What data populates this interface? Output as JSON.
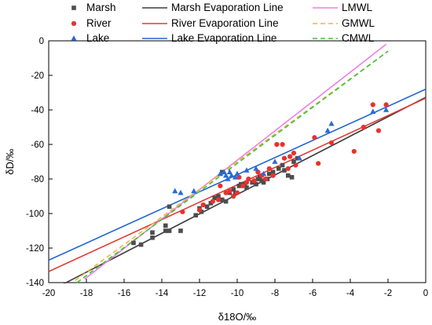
{
  "chart_data": {
    "type": "scatter",
    "xlabel": "δ18O/‰",
    "ylabel": "δD/‰",
    "xlim": [
      -20,
      0
    ],
    "ylim": [
      -140,
      0
    ],
    "xticks": [
      -20,
      -18,
      -16,
      -14,
      -12,
      -10,
      -8,
      -6,
      -4,
      -2,
      0
    ],
    "yticks": [
      -140,
      -120,
      -100,
      -80,
      -60,
      -40,
      -20,
      0
    ],
    "grid": false,
    "legend_position": "top",
    "series": [
      {
        "name": "Marsh",
        "marker": "square",
        "color": "#4d4d4d",
        "points": [
          [
            -15.5,
            -117
          ],
          [
            -15.1,
            -118
          ],
          [
            -14.5,
            -114
          ],
          [
            -14.5,
            -111
          ],
          [
            -13.8,
            -110
          ],
          [
            -13.6,
            -110
          ],
          [
            -13.0,
            -110
          ],
          [
            -13.6,
            -96
          ],
          [
            -13.8,
            -107
          ],
          [
            -12.2,
            -101
          ],
          [
            -12.0,
            -97
          ],
          [
            -11.9,
            -99
          ],
          [
            -11.6,
            -96
          ],
          [
            -11.4,
            -94
          ],
          [
            -11.2,
            -91
          ],
          [
            -11.0,
            -90
          ],
          [
            -10.8,
            -92
          ],
          [
            -10.6,
            -93
          ],
          [
            -10.4,
            -88
          ],
          [
            -10.2,
            -86
          ],
          [
            -10.1,
            -88
          ],
          [
            -9.9,
            -84
          ],
          [
            -9.8,
            -83
          ],
          [
            -9.6,
            -83
          ],
          [
            -9.5,
            -85
          ],
          [
            -9.2,
            -82
          ],
          [
            -9.0,
            -83
          ],
          [
            -8.9,
            -80
          ],
          [
            -8.8,
            -79
          ],
          [
            -8.7,
            -81
          ],
          [
            -8.6,
            -82
          ],
          [
            -8.4,
            -80
          ],
          [
            -8.3,
            -77
          ],
          [
            -8.1,
            -76
          ],
          [
            -7.8,
            -74
          ],
          [
            -7.6,
            -72
          ],
          [
            -7.5,
            -75
          ],
          [
            -7.3,
            -78
          ],
          [
            -7.1,
            -79
          ],
          [
            -7.0,
            -70
          ],
          [
            -6.8,
            -68
          ],
          [
            -10.8,
            -76
          ]
        ]
      },
      {
        "name": "River",
        "marker": "circle",
        "color": "#e8322d",
        "points": [
          [
            -12.9,
            -99
          ],
          [
            -12.0,
            -98
          ],
          [
            -11.8,
            -95
          ],
          [
            -11.3,
            -93
          ],
          [
            -11.0,
            -92
          ],
          [
            -10.9,
            -84
          ],
          [
            -10.6,
            -88
          ],
          [
            -10.4,
            -87
          ],
          [
            -10.2,
            -90
          ],
          [
            -10.0,
            -88
          ],
          [
            -9.9,
            -79
          ],
          [
            -9.7,
            -84
          ],
          [
            -9.5,
            -82
          ],
          [
            -9.4,
            -80
          ],
          [
            -9.1,
            -81
          ],
          [
            -8.9,
            -76
          ],
          [
            -8.7,
            -78
          ],
          [
            -8.5,
            -80
          ],
          [
            -8.3,
            -74
          ],
          [
            -8.1,
            -78
          ],
          [
            -7.9,
            -60
          ],
          [
            -7.6,
            -60
          ],
          [
            -7.5,
            -68
          ],
          [
            -7.3,
            -74
          ],
          [
            -7.2,
            -67
          ],
          [
            -7.0,
            -65
          ],
          [
            -6.9,
            -72
          ],
          [
            -5.7,
            -71
          ],
          [
            -5.9,
            -56
          ],
          [
            -5.0,
            -59
          ],
          [
            -3.8,
            -64
          ],
          [
            -3.3,
            -50
          ],
          [
            -2.8,
            -37
          ],
          [
            -2.5,
            -52
          ],
          [
            -2.1,
            -37
          ]
        ]
      },
      {
        "name": "Lake",
        "marker": "triangle",
        "color": "#2b6ad8",
        "points": [
          [
            -13.3,
            -87
          ],
          [
            -13.0,
            -88
          ],
          [
            -12.3,
            -87
          ],
          [
            -10.9,
            -77
          ],
          [
            -10.7,
            -76
          ],
          [
            -10.6,
            -78
          ],
          [
            -10.5,
            -80
          ],
          [
            -10.4,
            -76
          ],
          [
            -10.3,
            -78
          ],
          [
            -10.1,
            -79
          ],
          [
            -10.0,
            -77
          ],
          [
            -9.5,
            -75
          ],
          [
            -9.0,
            -74
          ],
          [
            -8.6,
            -77
          ],
          [
            -8.0,
            -70
          ],
          [
            -6.7,
            -68
          ],
          [
            -5.2,
            -52
          ],
          [
            -5.0,
            -48
          ],
          [
            -2.8,
            -41
          ],
          [
            -2.1,
            -40
          ]
        ]
      }
    ],
    "lines": [
      {
        "name": "Marsh Evaporation Line",
        "color": "#3d3d3d",
        "dash": "solid",
        "x": [
          -20,
          0
        ],
        "y": [
          -145.2,
          -32.7
        ]
      },
      {
        "name": "River Evaporation Line",
        "color": "#e03c37",
        "dash": "solid",
        "x": [
          -20,
          0
        ],
        "y": [
          -133.6,
          -33.2
        ]
      },
      {
        "name": "Lake Evaporation Line",
        "color": "#2066d0",
        "dash": "solid",
        "x": [
          -20,
          0
        ],
        "y": [
          -127.0,
          -28.0
        ]
      },
      {
        "name": "LMWL",
        "color": "#ee7ee6",
        "dash": "solid",
        "x": [
          -18.1,
          -2.1
        ],
        "y": [
          -138,
          -2
        ]
      },
      {
        "name": "GMWL",
        "color": "#f5b041",
        "dash": "dashed",
        "x": [
          -18.6,
          -2.0
        ],
        "y": [
          -138.8,
          -6
        ]
      },
      {
        "name": "CMWL",
        "color": "#3cc43c",
        "dash": "dashed",
        "x": [
          -18.5,
          -2.0
        ],
        "y": [
          -140,
          -6
        ]
      }
    ]
  }
}
